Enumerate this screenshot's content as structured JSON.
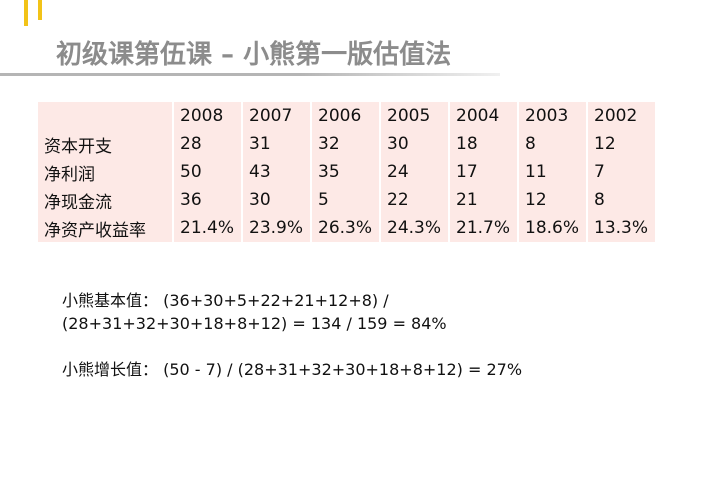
{
  "slide": {
    "title": "初级课第伍课 – 小熊第一版估值法",
    "accent_color": "#f2c318",
    "table_bg": "#fde9e6"
  },
  "table": {
    "years": [
      "2008",
      "2007",
      "2006",
      "2005",
      "2004",
      "2003",
      "2002"
    ],
    "rows": [
      {
        "label": "资本开支",
        "values": [
          "28",
          "31",
          "32",
          "30",
          "18",
          "8",
          "12"
        ]
      },
      {
        "label": "净利润",
        "values": [
          "50",
          "43",
          "35",
          "24",
          "17",
          "11",
          "7"
        ]
      },
      {
        "label": "净现金流",
        "values": [
          "36",
          "30",
          "5",
          "22",
          "21",
          "12",
          "8"
        ]
      },
      {
        "label": "净资产收益率",
        "values": [
          "21.4%",
          "23.9%",
          "26.3%",
          "24.3%",
          "21.7%",
          "18.6%",
          "13.3%"
        ]
      }
    ]
  },
  "notes": {
    "basic_line1": "小熊基本值： (36+30+5+22+21+12+8) /",
    "basic_line2": "(28+31+32+30+18+8+12) = 134 / 159 = 84%",
    "growth_line": "小熊增长值： (50 - 7) / (28+31+32+30+18+8+12) = 27%"
  }
}
